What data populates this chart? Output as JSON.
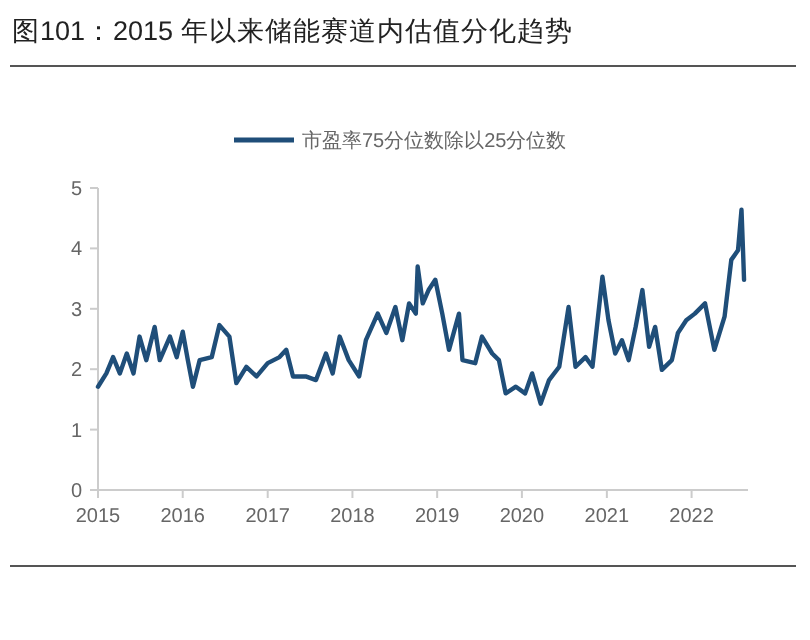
{
  "chart_data": {
    "type": "line",
    "title": "图101：2015 年以来储能赛道内估值分化趋势",
    "x": [
      "2015-01-01",
      "2015-02-06",
      "2015-03-07",
      "2015-04-05",
      "2015-05-05",
      "2015-06-03",
      "2015-06-29",
      "2015-07-28",
      "2015-09-02",
      "2015-09-24",
      "2015-11-07",
      "2015-12-06",
      "2016-01-01",
      "2016-01-23",
      "2016-02-14",
      "2016-03-14",
      "2016-05-05",
      "2016-06-07",
      "2016-07-20",
      "2016-08-19",
      "2016-10-01",
      "2016-11-14",
      "2017-01-01",
      "2017-02-21",
      "2017-03-22",
      "2017-04-20",
      "2017-06-14",
      "2017-07-28",
      "2017-09-09",
      "2017-10-08",
      "2017-11-07",
      "2017-12-16",
      "2018-01-30",
      "2018-02-28",
      "2018-04-20",
      "2018-05-27",
      "2018-07-05",
      "2018-08-04",
      "2018-09-02",
      "2018-10-01",
      "2018-10-09",
      "2018-10-31",
      "2018-11-25",
      "2018-12-24",
      "2019-01-23",
      "2019-02-21",
      "2019-04-05",
      "2019-04-20",
      "2019-06-14",
      "2019-07-13",
      "2019-08-26",
      "2019-09-24",
      "2019-10-23",
      "2019-12-06",
      "2020-01-15",
      "2020-02-14",
      "2020-03-22",
      "2020-04-27",
      "2020-06-10",
      "2020-07-20",
      "2020-08-19",
      "2020-10-01",
      "2020-10-31",
      "2020-12-13",
      "2021-01-08",
      "2021-02-06",
      "2021-03-07",
      "2021-04-05",
      "2021-05-05",
      "2021-06-03",
      "2021-07-02",
      "2021-07-28",
      "2021-08-26",
      "2021-10-08",
      "2021-11-03",
      "2021-12-09",
      "2022-01-15",
      "2022-02-28",
      "2022-04-09",
      "2022-05-23",
      "2022-06-21",
      "2022-07-20",
      "2022-08-04",
      "2022-08-11",
      "2022-08-15"
    ],
    "series": [
      {
        "name": "市盈率75分位数除以25分位数",
        "color": "#1f4e79",
        "values": [
          1.71,
          1.93,
          2.2,
          1.93,
          2.26,
          1.93,
          2.54,
          2.15,
          2.7,
          2.15,
          2.54,
          2.2,
          2.62,
          2.15,
          1.71,
          2.15,
          2.2,
          2.73,
          2.54,
          1.77,
          2.04,
          1.88,
          2.1,
          2.2,
          2.32,
          1.88,
          1.88,
          1.82,
          2.26,
          1.93,
          2.54,
          2.15,
          1.88,
          2.48,
          2.92,
          2.6,
          3.03,
          2.48,
          3.09,
          2.92,
          3.7,
          3.09,
          3.31,
          3.48,
          2.92,
          2.32,
          2.92,
          2.15,
          2.1,
          2.54,
          2.26,
          2.15,
          1.6,
          1.71,
          1.6,
          1.93,
          1.43,
          1.82,
          2.04,
          3.03,
          2.04,
          2.2,
          2.04,
          3.53,
          2.81,
          2.26,
          2.48,
          2.15,
          2.7,
          3.31,
          2.37,
          2.7,
          1.99,
          2.15,
          2.6,
          2.81,
          2.92,
          3.09,
          2.32,
          2.87,
          3.81,
          3.97,
          4.64,
          3.92,
          3.48
        ]
      }
    ],
    "xlim": [
      "2015-01-01",
      "2022-09-01"
    ],
    "xticks": [
      "2015",
      "2016",
      "2017",
      "2018",
      "2019",
      "2020",
      "2021",
      "2022"
    ],
    "ylim": [
      0,
      5
    ],
    "yticks": [
      0,
      1,
      2,
      3,
      4,
      5
    ],
    "grid": false,
    "legend": "top",
    "line_style": "solid"
  }
}
